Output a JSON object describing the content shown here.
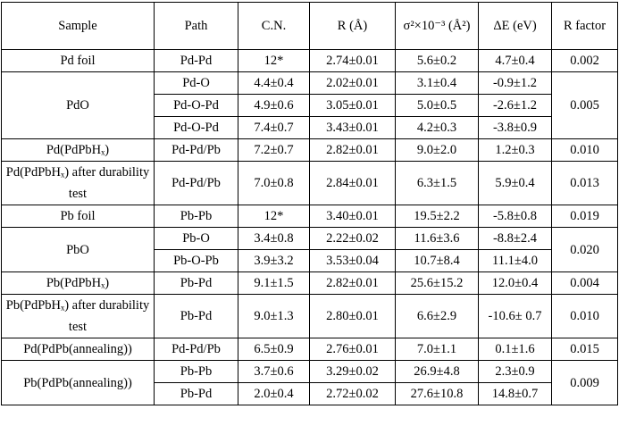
{
  "table": {
    "headers": [
      "Sample",
      "Path",
      "C.N.",
      "R (Å)",
      "σ²×10⁻³ (Å²)",
      "ΔE (eV)",
      "R factor"
    ],
    "groups": [
      {
        "sample": "Pd foil",
        "rows": [
          {
            "path": "Pd-Pd",
            "cn": "12*",
            "r": "2.74±0.01",
            "sigma2": "5.6±0.2",
            "de": "4.7±0.4"
          }
        ],
        "rfactor": "0.002"
      },
      {
        "sample": "PdO",
        "rows": [
          {
            "path": "Pd-O",
            "cn": "4.4±0.4",
            "r": "2.02±0.01",
            "sigma2": "3.1±0.4",
            "de": "-0.9±1.2"
          },
          {
            "path": "Pd-O-Pd",
            "cn": "4.9±0.6",
            "r": "3.05±0.01",
            "sigma2": "5.0±0.5",
            "de": "-2.6±1.2"
          },
          {
            "path": "Pd-O-Pd",
            "cn": "7.4±0.7",
            "r": "3.43±0.01",
            "sigma2": "4.2±0.3",
            "de": "-3.8±0.9"
          }
        ],
        "rfactor": "0.005"
      },
      {
        "sample": "Pd(PdPbHₓ)",
        "rows": [
          {
            "path": "Pd-Pd/Pb",
            "cn": "7.2±0.7",
            "r": "2.82±0.01",
            "sigma2": "9.0±2.0",
            "de": "1.2±0.3"
          }
        ],
        "rfactor": "0.010"
      },
      {
        "sample": "Pd(PdPbHₓ) after durability test",
        "rows": [
          {
            "path": "Pd-Pd/Pb",
            "cn": "7.0±0.8",
            "r": "2.84±0.01",
            "sigma2": "6.3±1.5",
            "de": "5.9±0.4"
          }
        ],
        "rfactor": "0.013"
      },
      {
        "sample": "Pb foil",
        "rows": [
          {
            "path": "Pb-Pb",
            "cn": "12*",
            "r": "3.40±0.01",
            "sigma2": "19.5±2.2",
            "de": "-5.8±0.8"
          }
        ],
        "rfactor": "0.019"
      },
      {
        "sample": "PbO",
        "rows": [
          {
            "path": "Pb-O",
            "cn": "3.4±0.8",
            "r": "2.22±0.02",
            "sigma2": "11.6±3.6",
            "de": "-8.8±2.4"
          },
          {
            "path": "Pb-O-Pb",
            "cn": "3.9±3.2",
            "r": "3.53±0.04",
            "sigma2": "10.7±8.4",
            "de": "11.1±4.0"
          }
        ],
        "rfactor": "0.020"
      },
      {
        "sample": "Pb(PdPbHₓ)",
        "rows": [
          {
            "path": "Pb-Pd",
            "cn": "9.1±1.5",
            "r": "2.82±0.01",
            "sigma2": "25.6±15.2",
            "de": "12.0±0.4"
          }
        ],
        "rfactor": "0.004"
      },
      {
        "sample": "Pb(PdPbHₓ) after durability test",
        "rows": [
          {
            "path": "Pb-Pd",
            "cn": "9.0±1.3",
            "r": "2.80±0.01",
            "sigma2": "6.6±2.9",
            "de": "-10.6± 0.7"
          }
        ],
        "rfactor": "0.010"
      },
      {
        "sample": "Pd(PdPb(annealing))",
        "rows": [
          {
            "path": "Pd-Pd/Pb",
            "cn": "6.5±0.9",
            "r": "2.76±0.01",
            "sigma2": "7.0±1.1",
            "de": "0.1±1.6"
          }
        ],
        "rfactor": "0.015"
      },
      {
        "sample": "Pb(PdPb(annealing))",
        "rows": [
          {
            "path": "Pb-Pb",
            "cn": "3.7±0.6",
            "r": "3.29±0.02",
            "sigma2": "26.9±4.8",
            "de": "2.3±0.9"
          },
          {
            "path": "Pb-Pd",
            "cn": "2.0±0.4",
            "r": "2.72±0.02",
            "sigma2": "27.6±10.8",
            "de": "14.8±0.7"
          }
        ],
        "rfactor": "0.009"
      }
    ]
  }
}
